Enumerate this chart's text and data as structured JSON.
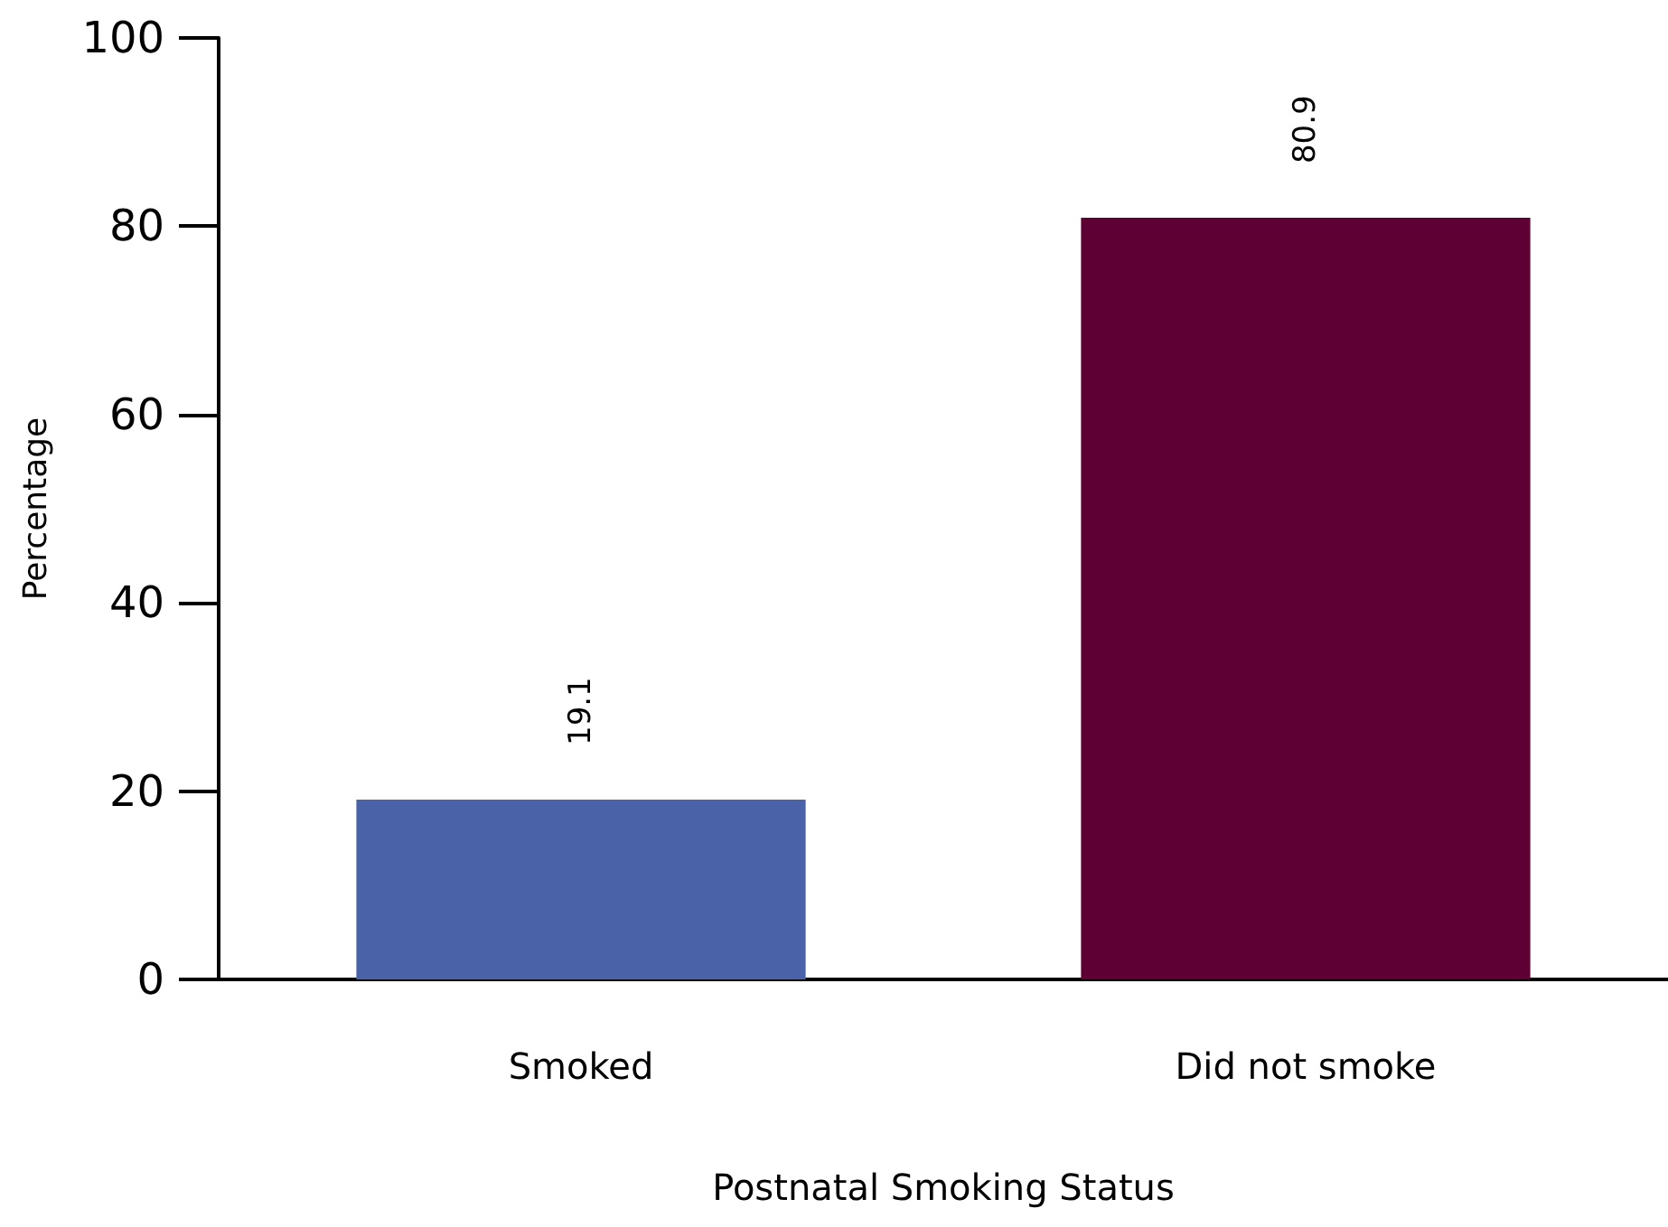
{
  "chart_data": {
    "type": "bar",
    "xlabel": "Postnatal Smoking Status",
    "ylabel": "Percentage",
    "categories": [
      "Smoked",
      "Did not smoke"
    ],
    "values": [
      19.1,
      80.9
    ],
    "colors": [
      "#4a63a8",
      "#5e0033"
    ],
    "ylim": [
      0,
      100
    ],
    "yticks": [
      0,
      20,
      40,
      60,
      80,
      100
    ],
    "grid": false,
    "data_labels": true
  }
}
